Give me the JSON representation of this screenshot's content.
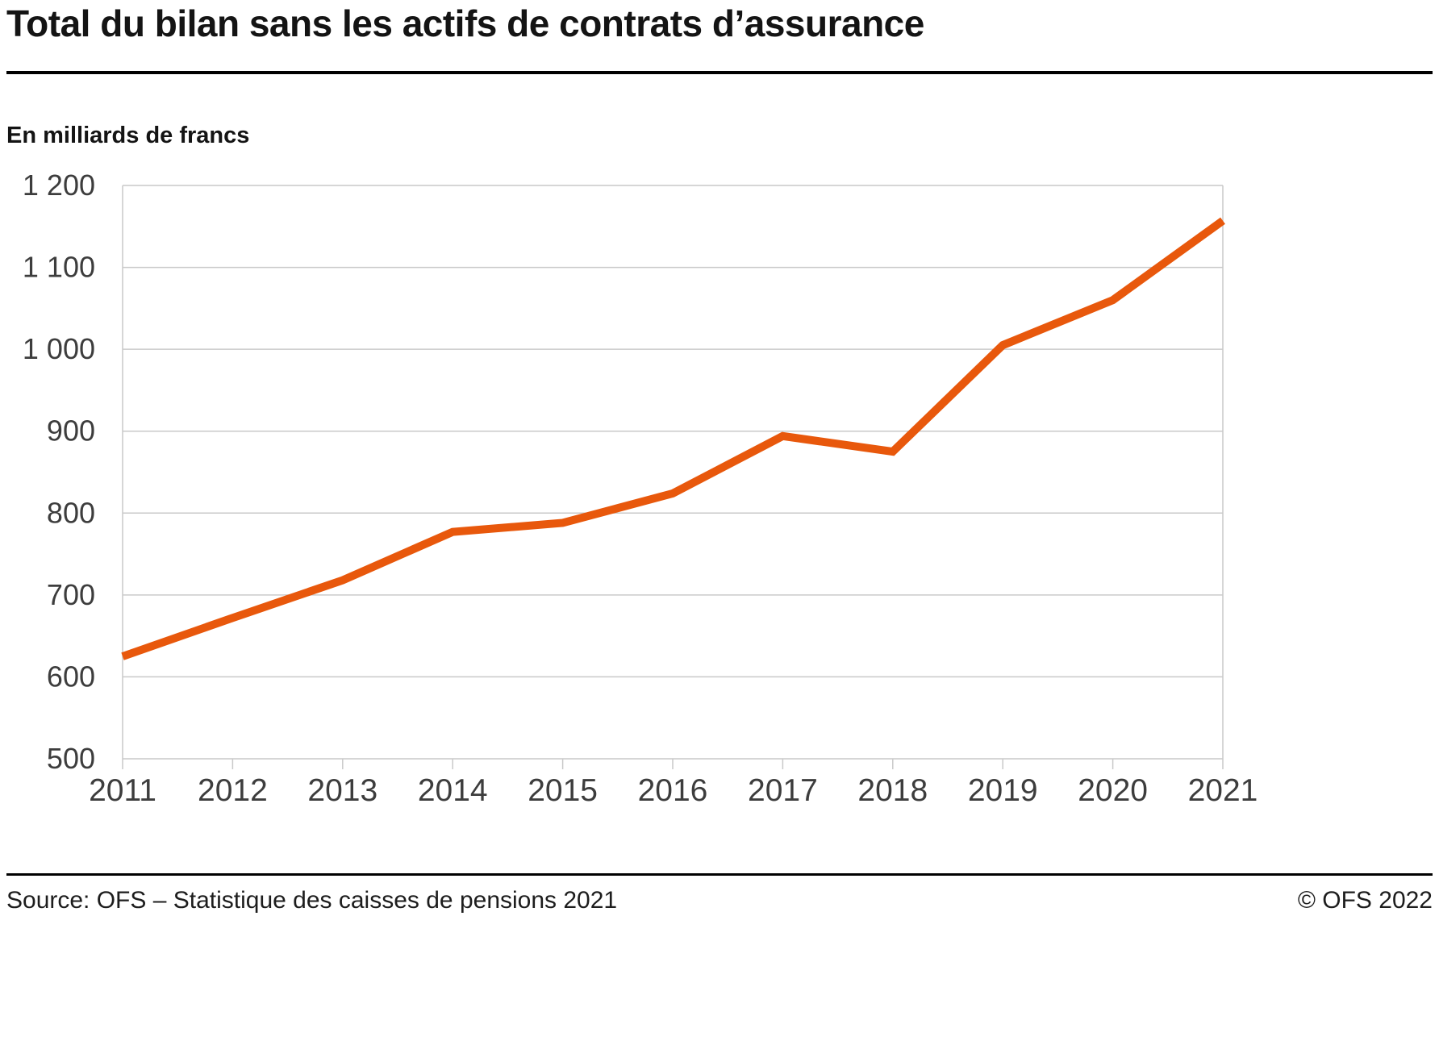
{
  "page": {
    "title": "Total du bilan sans les actifs de contrats d’assurance",
    "unit_label": "En milliards de francs",
    "source": "Source: OFS – Statistique des caisses de pensions 2021",
    "copyright": "© OFS 2022"
  },
  "chart_data": {
    "type": "line",
    "title": "Total du bilan sans les actifs de contrats d’assurance",
    "ylabel": "En milliards de francs",
    "x": [
      2011,
      2012,
      2013,
      2014,
      2015,
      2016,
      2017,
      2018,
      2019,
      2020,
      2021
    ],
    "values": [
      625,
      672,
      718,
      777,
      788,
      824,
      894,
      875,
      1005,
      1060,
      1157
    ],
    "ylim": [
      500,
      1200
    ],
    "ytick_step": 100,
    "ytick_labels": [
      "500",
      "600",
      "700",
      "800",
      "900",
      "1 000",
      "1 100",
      "1 200"
    ],
    "grid": true,
    "legend": "none",
    "line_color": "#e8580c",
    "grid_color": "#c9c9c9"
  }
}
